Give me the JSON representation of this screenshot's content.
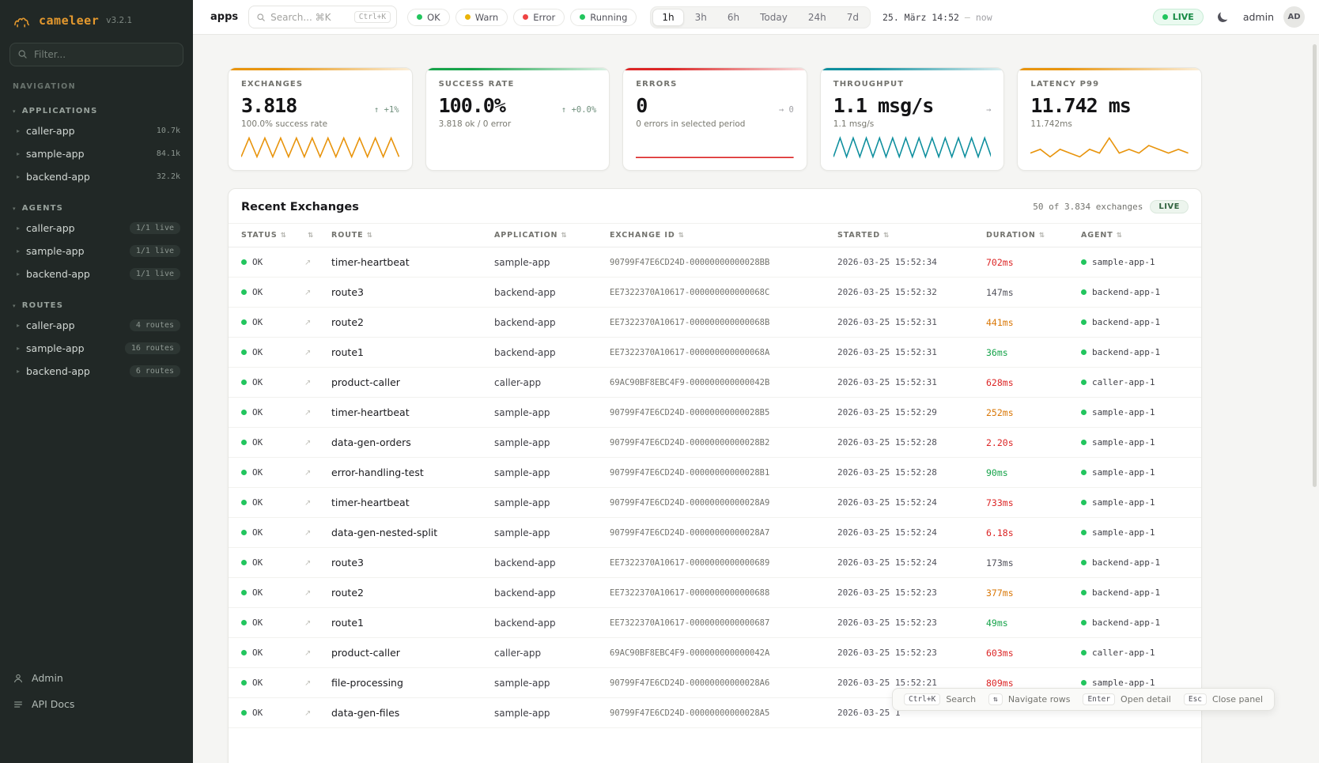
{
  "sidebar": {
    "logo": {
      "name": "cameleer",
      "version": "v3.2.1"
    },
    "filter_placeholder": "Filter...",
    "nav_label": "NAVIGATION",
    "sections": [
      {
        "label": "APPLICATIONS",
        "items": [
          {
            "label": "caller-app",
            "badge": "10.7k",
            "pill": false
          },
          {
            "label": "sample-app",
            "badge": "84.1k",
            "pill": false
          },
          {
            "label": "backend-app",
            "badge": "32.2k",
            "pill": false
          }
        ]
      },
      {
        "label": "AGENTS",
        "items": [
          {
            "label": "caller-app",
            "badge": "1/1 live",
            "pill": true
          },
          {
            "label": "sample-app",
            "badge": "1/1 live",
            "pill": true
          },
          {
            "label": "backend-app",
            "badge": "1/1 live",
            "pill": true
          }
        ]
      },
      {
        "label": "ROUTES",
        "items": [
          {
            "label": "caller-app",
            "badge": "4 routes",
            "pill": true
          },
          {
            "label": "sample-app",
            "badge": "16 routes",
            "pill": true
          },
          {
            "label": "backend-app",
            "badge": "6 routes",
            "pill": true
          }
        ]
      }
    ],
    "footer": [
      {
        "label": "Admin"
      },
      {
        "label": "API Docs"
      }
    ]
  },
  "topbar": {
    "page": "apps",
    "search_placeholder": "Search... ⌘K",
    "search_shortcut": "Ctrl+K",
    "filters": [
      {
        "label": "OK",
        "color": "#22c55e"
      },
      {
        "label": "Warn",
        "color": "#eab308"
      },
      {
        "label": "Error",
        "color": "#ef4444"
      },
      {
        "label": "Running",
        "color": "#22c55e"
      }
    ],
    "ranges": [
      {
        "label": "1h",
        "active": true
      },
      {
        "label": "3h"
      },
      {
        "label": "6h"
      },
      {
        "label": "Today"
      },
      {
        "label": "24h"
      },
      {
        "label": "7d"
      }
    ],
    "date_label": "25. März 14:52",
    "date_sep": "—",
    "date_now": "now",
    "live_label": "LIVE",
    "user": "admin",
    "avatar": "AD"
  },
  "stats": [
    {
      "title": "EXCHANGES",
      "value": "3.818",
      "delta": "↑ +1%",
      "delta_color": "#6f8f7c",
      "sub": "100.0% success rate",
      "accent": "#e8940c",
      "spark_color": "#e8940c",
      "spark": [
        0,
        9,
        0,
        9,
        0,
        9,
        0,
        9,
        0,
        9,
        0,
        9,
        0,
        9,
        0,
        9,
        0,
        9,
        0,
        9,
        0
      ]
    },
    {
      "title": "SUCCESS RATE",
      "value": "100.0%",
      "delta": "↑ +0.0%",
      "delta_color": "#6f8f7c",
      "sub": "3.818 ok / 0 error",
      "accent": "#16a34a",
      "spark_color": "#16a34a",
      "spark": []
    },
    {
      "title": "ERRORS",
      "value": "0",
      "delta": "→ 0",
      "delta_color": "#a1a1a6",
      "sub": "0 errors in selected period",
      "accent": "#dc2626",
      "spark_color": "#dc2626",
      "spark": [
        0,
        0
      ]
    },
    {
      "title": "THROUGHPUT",
      "value": "1.1 msg/s",
      "delta": "→",
      "delta_color": "#a1a1a6",
      "sub": "1.1 msg/s",
      "accent": "#0e8f9e",
      "spark_color": "#0e8f9e",
      "spark": [
        0,
        8,
        0,
        8,
        0,
        8,
        0,
        8,
        0,
        8,
        0,
        8,
        0,
        8,
        0,
        8,
        0,
        8,
        0,
        8,
        0,
        8,
        0,
        8,
        0
      ]
    },
    {
      "title": "LATENCY P99",
      "value": "11.742 ms",
      "delta": "",
      "delta_color": "",
      "sub": "11.742ms",
      "accent": "#e8940c",
      "spark_color": "#e8940c",
      "spark": [
        4,
        5,
        3,
        5,
        4,
        3,
        5,
        4,
        8,
        4,
        5,
        4,
        6,
        5,
        4,
        5,
        4
      ]
    }
  ],
  "table": {
    "title": "Recent Exchanges",
    "summary": "50 of 3.834 exchanges",
    "live_label": "LIVE",
    "columns": [
      {
        "label": "STATUS"
      },
      {
        "label": ""
      },
      {
        "label": "ROUTE"
      },
      {
        "label": "APPLICATION"
      },
      {
        "label": "EXCHANGE ID"
      },
      {
        "label": "STARTED"
      },
      {
        "label": "DURATION"
      },
      {
        "label": "AGENT"
      }
    ],
    "rows": [
      {
        "status": "OK",
        "route": "timer-heartbeat",
        "app": "sample-app",
        "exchange_id": "90799F47E6CD24D-00000000000028BB",
        "started": "2026-03-25 15:52:34",
        "duration": "702ms",
        "duration_color": "#dc2626",
        "agent": "sample-app-1"
      },
      {
        "status": "OK",
        "route": "route3",
        "app": "backend-app",
        "exchange_id": "EE7322370A10617-000000000000068C",
        "started": "2026-03-25 15:52:32",
        "duration": "147ms",
        "duration_color": "#52525b",
        "agent": "backend-app-1"
      },
      {
        "status": "OK",
        "route": "route2",
        "app": "backend-app",
        "exchange_id": "EE7322370A10617-000000000000068B",
        "started": "2026-03-25 15:52:31",
        "duration": "441ms",
        "duration_color": "#d97706",
        "agent": "backend-app-1"
      },
      {
        "status": "OK",
        "route": "route1",
        "app": "backend-app",
        "exchange_id": "EE7322370A10617-000000000000068A",
        "started": "2026-03-25 15:52:31",
        "duration": "36ms",
        "duration_color": "#16a34a",
        "agent": "backend-app-1"
      },
      {
        "status": "OK",
        "route": "product-caller",
        "app": "caller-app",
        "exchange_id": "69AC90BF8EBC4F9-000000000000042B",
        "started": "2026-03-25 15:52:31",
        "duration": "628ms",
        "duration_color": "#dc2626",
        "agent": "caller-app-1"
      },
      {
        "status": "OK",
        "route": "timer-heartbeat",
        "app": "sample-app",
        "exchange_id": "90799F47E6CD24D-00000000000028B5",
        "started": "2026-03-25 15:52:29",
        "duration": "252ms",
        "duration_color": "#d97706",
        "agent": "sample-app-1"
      },
      {
        "status": "OK",
        "route": "data-gen-orders",
        "app": "sample-app",
        "exchange_id": "90799F47E6CD24D-00000000000028B2",
        "started": "2026-03-25 15:52:28",
        "duration": "2.20s",
        "duration_color": "#dc2626",
        "agent": "sample-app-1"
      },
      {
        "status": "OK",
        "route": "error-handling-test",
        "app": "sample-app",
        "exchange_id": "90799F47E6CD24D-00000000000028B1",
        "started": "2026-03-25 15:52:28",
        "duration": "90ms",
        "duration_color": "#16a34a",
        "agent": "sample-app-1"
      },
      {
        "status": "OK",
        "route": "timer-heartbeat",
        "app": "sample-app",
        "exchange_id": "90799F47E6CD24D-00000000000028A9",
        "started": "2026-03-25 15:52:24",
        "duration": "733ms",
        "duration_color": "#dc2626",
        "agent": "sample-app-1"
      },
      {
        "status": "OK",
        "route": "data-gen-nested-split",
        "app": "sample-app",
        "exchange_id": "90799F47E6CD24D-00000000000028A7",
        "started": "2026-03-25 15:52:24",
        "duration": "6.18s",
        "duration_color": "#dc2626",
        "agent": "sample-app-1"
      },
      {
        "status": "OK",
        "route": "route3",
        "app": "backend-app",
        "exchange_id": "EE7322370A10617-0000000000000689",
        "started": "2026-03-25 15:52:24",
        "duration": "173ms",
        "duration_color": "#52525b",
        "agent": "backend-app-1"
      },
      {
        "status": "OK",
        "route": "route2",
        "app": "backend-app",
        "exchange_id": "EE7322370A10617-0000000000000688",
        "started": "2026-03-25 15:52:23",
        "duration": "377ms",
        "duration_color": "#d97706",
        "agent": "backend-app-1"
      },
      {
        "status": "OK",
        "route": "route1",
        "app": "backend-app",
        "exchange_id": "EE7322370A10617-0000000000000687",
        "started": "2026-03-25 15:52:23",
        "duration": "49ms",
        "duration_color": "#16a34a",
        "agent": "backend-app-1"
      },
      {
        "status": "OK",
        "route": "product-caller",
        "app": "caller-app",
        "exchange_id": "69AC90BF8EBC4F9-000000000000042A",
        "started": "2026-03-25 15:52:23",
        "duration": "603ms",
        "duration_color": "#dc2626",
        "agent": "caller-app-1"
      },
      {
        "status": "OK",
        "route": "file-processing",
        "app": "sample-app",
        "exchange_id": "90799F47E6CD24D-00000000000028A6",
        "started": "2026-03-25 15:52:21",
        "duration": "809ms",
        "duration_color": "#dc2626",
        "agent": "sample-app-1"
      },
      {
        "status": "OK",
        "route": "data-gen-files",
        "app": "sample-app",
        "exchange_id": "90799F47E6CD24D-00000000000028A5",
        "started": "2026-03-25 1",
        "duration": "",
        "duration_color": "#52525b",
        "agent": "",
        "agent_hidden": true
      }
    ]
  },
  "shortcuts": [
    {
      "key": "Ctrl+K",
      "label": "Search"
    },
    {
      "key": "⇅",
      "label": "Navigate rows"
    },
    {
      "key": "Enter",
      "label": "Open detail"
    },
    {
      "key": "Esc",
      "label": "Close panel"
    }
  ]
}
